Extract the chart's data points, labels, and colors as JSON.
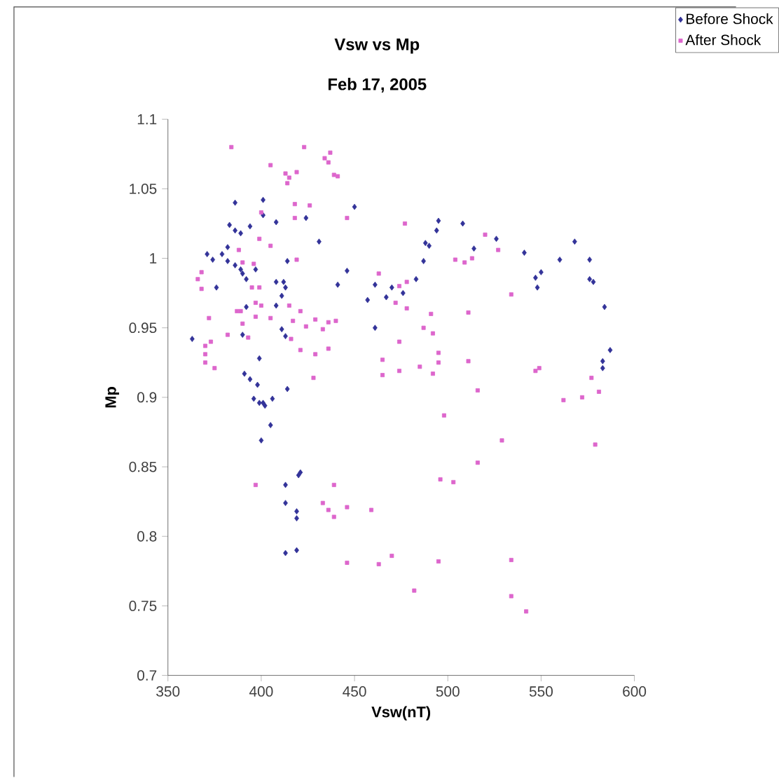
{
  "chart_data": {
    "type": "scatter",
    "title": "Vsw vs Mp",
    "subtitle": "Feb 17, 2005",
    "xlabel": "Vsw(nT)",
    "ylabel": "Mp",
    "xlim": [
      350,
      600
    ],
    "xticks": [
      350,
      400,
      450,
      500,
      550,
      600
    ],
    "ylim": [
      0.7,
      1.1
    ],
    "yticks": [
      0.7,
      0.75,
      0.8,
      0.85,
      0.9,
      0.95,
      1,
      1.05,
      1.1
    ],
    "grid": false,
    "legend": "top right",
    "series": [
      {
        "name": "Before Shock",
        "color": "#333399",
        "marker": "diamond",
        "x": [
          386,
          401,
          401,
          408,
          394,
          383,
          386,
          389,
          424,
          450,
          431,
          371,
          374,
          382,
          379,
          382,
          386,
          389,
          390,
          392,
          414,
          397,
          446,
          376,
          408,
          412,
          413,
          411,
          441,
          392,
          408,
          457,
          461,
          467,
          470,
          461,
          363,
          390,
          411,
          413,
          399,
          391,
          394,
          398,
          414,
          396,
          406,
          401,
          399,
          402,
          405,
          400,
          421,
          420,
          413,
          413,
          419,
          419,
          413,
          419,
          495,
          508,
          494,
          488,
          490,
          514,
          526,
          487,
          541,
          568,
          560,
          576,
          483,
          476,
          550,
          547,
          548,
          576,
          578,
          584,
          587,
          583,
          583
        ],
        "values": [
          1.04,
          1.042,
          1.031,
          1.026,
          1.023,
          1.024,
          1.02,
          1.018,
          1.029,
          1.037,
          1.012,
          1.003,
          0.999,
          1.008,
          1.003,
          0.998,
          0.995,
          0.992,
          0.989,
          0.985,
          0.998,
          0.992,
          0.991,
          0.979,
          0.983,
          0.983,
          0.979,
          0.973,
          0.981,
          0.965,
          0.966,
          0.97,
          0.981,
          0.972,
          0.979,
          0.95,
          0.942,
          0.945,
          0.949,
          0.944,
          0.928,
          0.917,
          0.913,
          0.909,
          0.906,
          0.899,
          0.899,
          0.896,
          0.896,
          0.894,
          0.88,
          0.869,
          0.846,
          0.844,
          0.837,
          0.824,
          0.818,
          0.813,
          0.788,
          0.79,
          1.027,
          1.025,
          1.02,
          1.011,
          1.009,
          1.007,
          1.014,
          0.998,
          1.004,
          1.012,
          0.999,
          0.999,
          0.985,
          0.975,
          0.99,
          0.986,
          0.979,
          0.985,
          0.983,
          0.965,
          0.934,
          0.926,
          0.921
        ]
      },
      {
        "name": "After Shock",
        "color": "#dd66cc",
        "marker": "square",
        "x": [
          384,
          423,
          437,
          434,
          436,
          405,
          419,
          413,
          415,
          414,
          439,
          441,
          418,
          426,
          400,
          418,
          446,
          399,
          405,
          388,
          390,
          419,
          396,
          368,
          366,
          368,
          395,
          399,
          463,
          397,
          400,
          415,
          472,
          387,
          389,
          421,
          372,
          397,
          405,
          417,
          429,
          436,
          440,
          390,
          424,
          433,
          393,
          382,
          416,
          373,
          370,
          421,
          429,
          436,
          370,
          370,
          375,
          428,
          465,
          465,
          477,
          520,
          527,
          504,
          509,
          513,
          478,
          474,
          478,
          491,
          511,
          534,
          487,
          492,
          474,
          495,
          495,
          511,
          474,
          485,
          492,
          516,
          547,
          549,
          577,
          562,
          572,
          581,
          498,
          529,
          579,
          516,
          496,
          503,
          470,
          495,
          534,
          482,
          534,
          542,
          397,
          439,
          433,
          436,
          439,
          446,
          459,
          446,
          463
        ],
        "values": [
          1.08,
          1.08,
          1.076,
          1.072,
          1.069,
          1.067,
          1.062,
          1.061,
          1.058,
          1.054,
          1.06,
          1.059,
          1.039,
          1.038,
          1.033,
          1.029,
          1.029,
          1.014,
          1.009,
          1.006,
          0.997,
          0.999,
          0.996,
          0.99,
          0.985,
          0.978,
          0.979,
          0.979,
          0.989,
          0.968,
          0.966,
          0.966,
          0.968,
          0.962,
          0.962,
          0.962,
          0.957,
          0.958,
          0.957,
          0.955,
          0.956,
          0.954,
          0.955,
          0.953,
          0.951,
          0.949,
          0.943,
          0.945,
          0.942,
          0.94,
          0.937,
          0.934,
          0.931,
          0.935,
          0.931,
          0.925,
          0.921,
          0.914,
          0.927,
          0.916,
          1.025,
          1.017,
          1.006,
          0.999,
          0.997,
          1.0,
          0.983,
          0.98,
          0.964,
          0.96,
          0.961,
          0.974,
          0.95,
          0.946,
          0.94,
          0.932,
          0.925,
          0.926,
          0.919,
          0.922,
          0.917,
          0.905,
          0.919,
          0.921,
          0.914,
          0.898,
          0.9,
          0.904,
          0.887,
          0.869,
          0.866,
          0.853,
          0.841,
          0.839,
          0.786,
          0.782,
          0.783,
          0.761,
          0.757,
          0.746,
          0.837,
          0.837,
          0.824,
          0.819,
          0.814,
          0.821,
          0.819,
          0.781,
          0.78
        ]
      }
    ]
  }
}
